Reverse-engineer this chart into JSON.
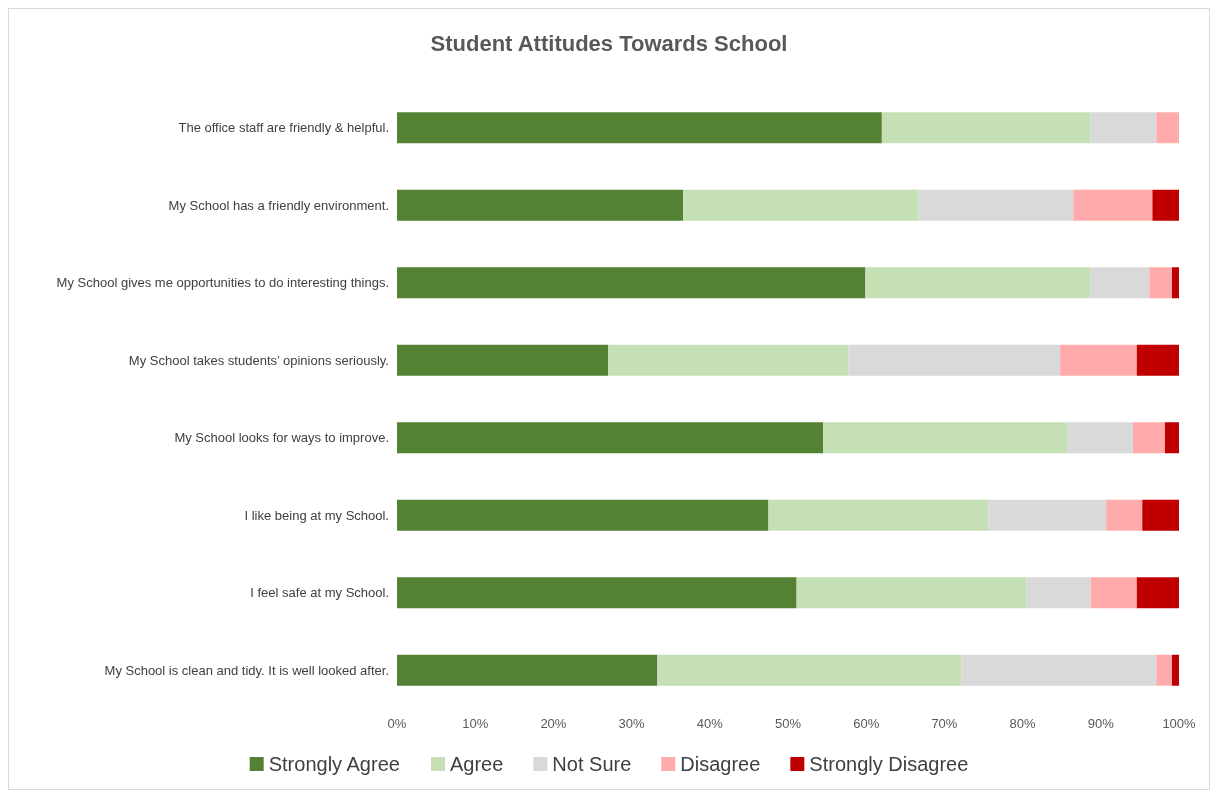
{
  "chart_data": {
    "type": "bar",
    "orientation": "horizontal",
    "stacked": true,
    "title": "Student Attitudes Towards School",
    "categories": [
      "The office staff are friendly & helpful.",
      "My School has a friendly environment.",
      "My School gives me opportunities to do interesting things.",
      "My School takes students’ opinions seriously.",
      "My School looks for ways to improve.",
      "I like being at my School.",
      "I feel safe at my School.",
      "My School is clean and tidy. It is well looked after."
    ],
    "series": [
      {
        "name": "Strongly Agree",
        "color": "#548235",
        "values": [
          62,
          36.6,
          59.9,
          27,
          54.5,
          47.5,
          51.1,
          33.3
        ]
      },
      {
        "name": "Agree",
        "color": "#c5e0b4",
        "values": [
          26.7,
          30.1,
          28.8,
          30.7,
          31.2,
          28.1,
          29.4,
          38.9
        ]
      },
      {
        "name": "Not Sure",
        "color": "#d9d9d9",
        "values": [
          8.4,
          19.8,
          7.5,
          27.1,
          8.4,
          15.1,
          8.2,
          24.9
        ]
      },
      {
        "name": "Disagree",
        "color": "#ffabab",
        "values": [
          2.9,
          10.1,
          2.9,
          9.8,
          4.1,
          4.6,
          5.9,
          2
        ]
      },
      {
        "name": "Strongly Disagree",
        "color": "#c00000",
        "values": [
          0,
          3.4,
          0.9,
          5.4,
          1.8,
          4.7,
          5.4,
          0.9
        ]
      }
    ],
    "xlim": [
      0,
      100
    ],
    "xticks": [
      {
        "value": 0,
        "label": "0%"
      },
      {
        "value": 10,
        "label": "10%"
      },
      {
        "value": 20,
        "label": "20%"
      },
      {
        "value": 30,
        "label": "30%"
      },
      {
        "value": 40,
        "label": "40%"
      },
      {
        "value": 50,
        "label": "50%"
      },
      {
        "value": 60,
        "label": "60%"
      },
      {
        "value": 70,
        "label": "70%"
      },
      {
        "value": 80,
        "label": "80%"
      },
      {
        "value": 90,
        "label": "90%"
      },
      {
        "value": 100,
        "label": "100%"
      }
    ],
    "grid": false,
    "legend": "bottom"
  }
}
